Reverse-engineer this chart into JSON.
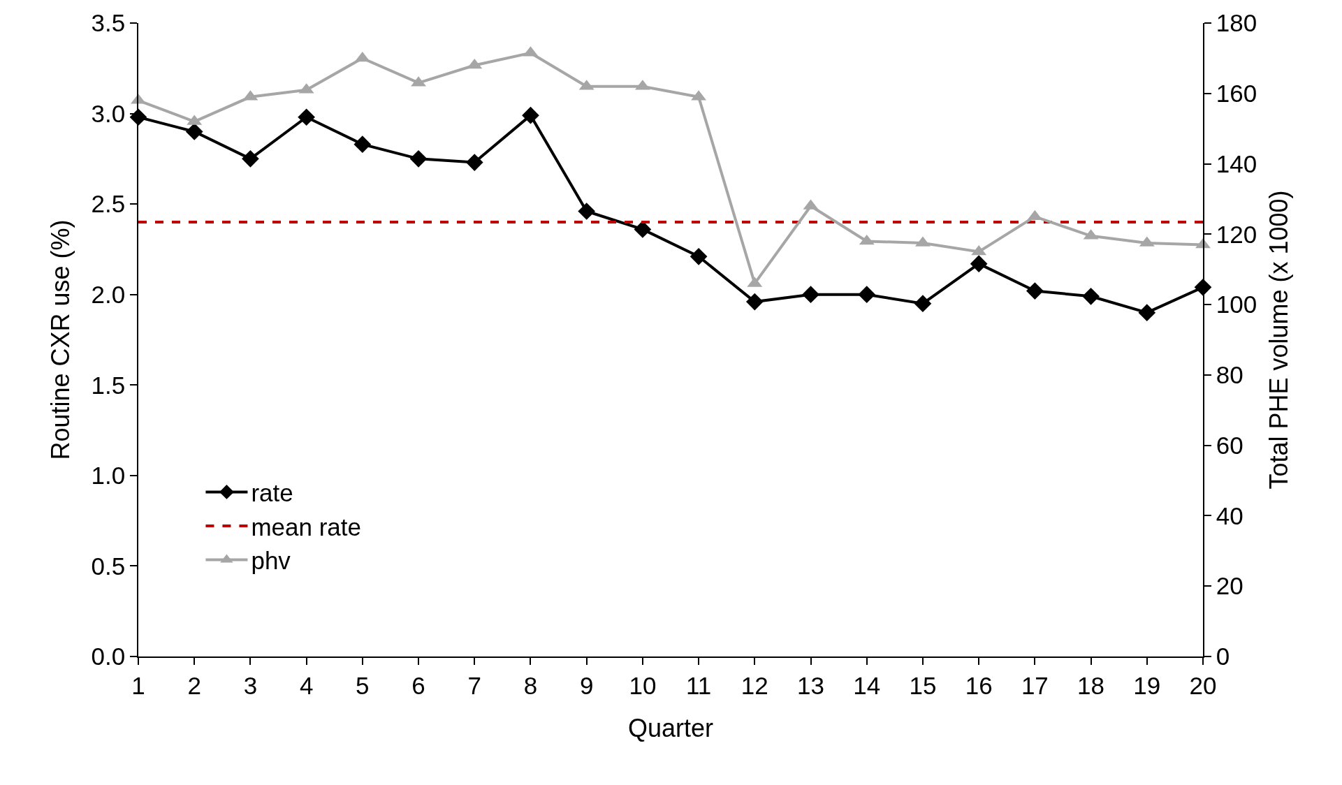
{
  "chart_data": {
    "type": "line",
    "xlabel": "Quarter",
    "ylabel": "Routine CXR use (%)",
    "y2label": "Total PHE volume (x 1000)",
    "x": [
      1,
      2,
      3,
      4,
      5,
      6,
      7,
      8,
      9,
      10,
      11,
      12,
      13,
      14,
      15,
      16,
      17,
      18,
      19,
      20
    ],
    "xlim": [
      1,
      20
    ],
    "xticks": [
      1,
      2,
      3,
      4,
      5,
      6,
      7,
      8,
      9,
      10,
      11,
      12,
      13,
      14,
      15,
      16,
      17,
      18,
      19,
      20
    ],
    "ylim": [
      0,
      3.5
    ],
    "yticks": [
      {
        "value": 0,
        "label": "0.0"
      },
      {
        "value": 0.5,
        "label": "0.5"
      },
      {
        "value": 1,
        "label": "1.0"
      },
      {
        "value": 1.5,
        "label": "1.5"
      },
      {
        "value": 2,
        "label": "2.0"
      },
      {
        "value": 2.5,
        "label": "2.5"
      },
      {
        "value": 3,
        "label": "3.0"
      },
      {
        "value": 3.5,
        "label": "3.5"
      }
    ],
    "y2lim": [
      0,
      180
    ],
    "y2ticks": [
      0,
      20,
      40,
      60,
      80,
      100,
      120,
      140,
      160,
      180
    ],
    "series": [
      {
        "name": "rate",
        "color": "#000000",
        "marker": "diamond",
        "values": [
          2.98,
          2.9,
          2.75,
          2.98,
          2.83,
          2.75,
          2.73,
          2.99,
          2.46,
          2.36,
          2.21,
          1.96,
          2.0,
          2.0,
          1.95,
          2.17,
          2.02,
          1.99,
          1.9,
          2.04
        ]
      },
      {
        "name": "phv",
        "color": "#a6a6a6",
        "marker": "triangle",
        "axis": "y2",
        "values": [
          158,
          152,
          159,
          161,
          170,
          163,
          168,
          171.5,
          162,
          162,
          159,
          106,
          128,
          118,
          117.5,
          115,
          125,
          119.5,
          117.5,
          117
        ]
      }
    ],
    "ref_lines": [
      {
        "axis": "y",
        "value": 2.4,
        "label": "mean rate",
        "color": "#c00000",
        "line_style": "dashed"
      }
    ],
    "legend": "bottom left"
  }
}
